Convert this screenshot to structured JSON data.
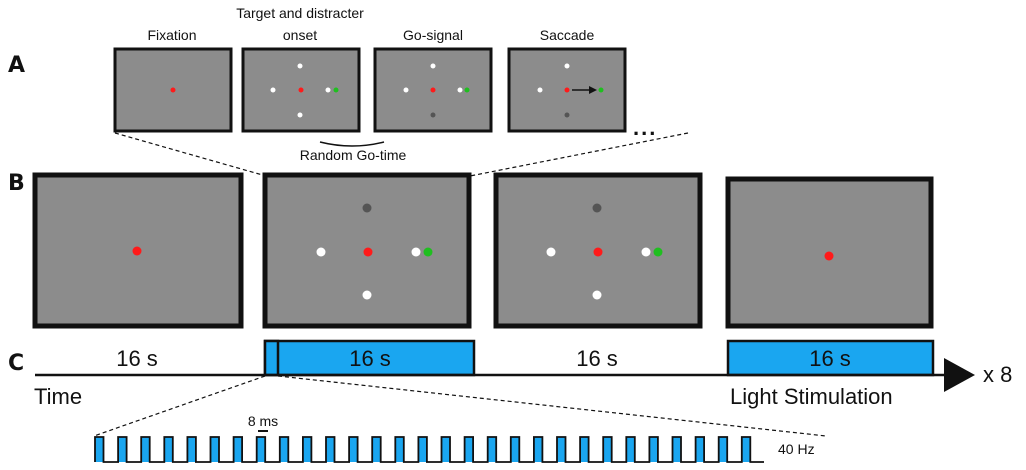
{
  "colors": {
    "screen": "#8c8c8c",
    "border": "#111111",
    "fixation": "#ff1a1a",
    "target": "#1fbf1f",
    "distracter": "#ffffff",
    "go_signal": "#555555",
    "stim_fill": "#1aa6f0"
  },
  "panel_labels": {
    "a": "A",
    "b": "B",
    "c": "C"
  },
  "row_a": {
    "titles": [
      "Fixation",
      "Target and distracter",
      "onset",
      "Go-signal",
      "Saccade"
    ],
    "ellipsis": "...",
    "random_go_time": "Random Go-time"
  },
  "row_c": {
    "block_labels": [
      "16 s",
      "16 s",
      "16 s",
      "16 s"
    ],
    "time_label": "Time",
    "light_label": "Light Stimulation",
    "repeat_label": "x 8",
    "pulse_width_label": "8 ms",
    "frequency_label": "40 Hz"
  }
}
